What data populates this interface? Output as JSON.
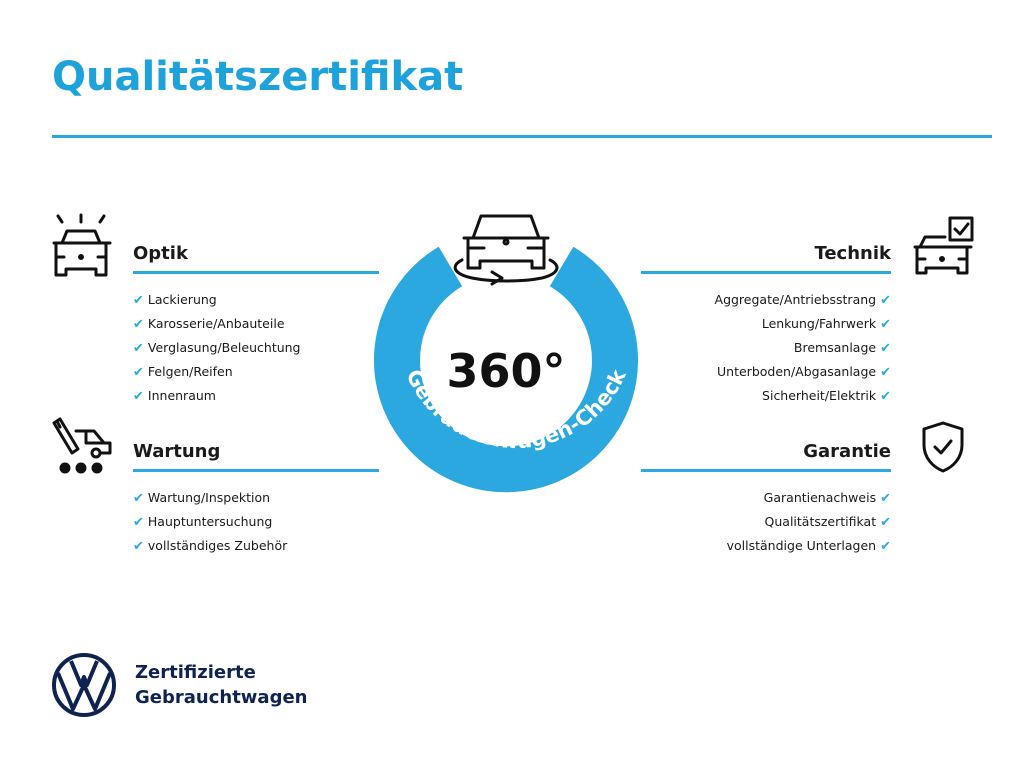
{
  "title": "Qualitätszertifikat",
  "accent_color": "#2aa8df",
  "center": {
    "number": "360°",
    "arc_text": "Gebrauchtwagen-Check",
    "icon": "car-rotate-icon"
  },
  "sections": {
    "optik": {
      "heading": "Optik",
      "icon": "car-lights-icon",
      "items": [
        "Lackierung",
        "Karosserie/Anbauteile",
        "Verglasung/Beleuchtung",
        "Felgen/Reifen",
        "Innenraum"
      ]
    },
    "wartung": {
      "heading": "Wartung",
      "icon": "van-wrench-icon",
      "items": [
        "Wartung/Inspektion",
        "Hauptuntersuchung",
        "vollständiges Zubehör"
      ]
    },
    "technik": {
      "heading": "Technik",
      "icon": "car-checkbox-icon",
      "items": [
        "Aggregate/Antriebsstrang",
        "Lenkung/Fahrwerk",
        "Bremsanlage",
        "Unterboden/Abgasanlage",
        "Sicherheit/Elektrik"
      ]
    },
    "garantie": {
      "heading": "Garantie",
      "icon": "shield-check-icon",
      "items": [
        "Garantienachweis",
        "Qualitätszertifikat",
        "vollständige Unterlagen"
      ]
    }
  },
  "check_mark": "✔",
  "footer": {
    "line1": "Zertifizierte",
    "line2": "Gebrauchtwagen",
    "logo": "vw-logo"
  }
}
